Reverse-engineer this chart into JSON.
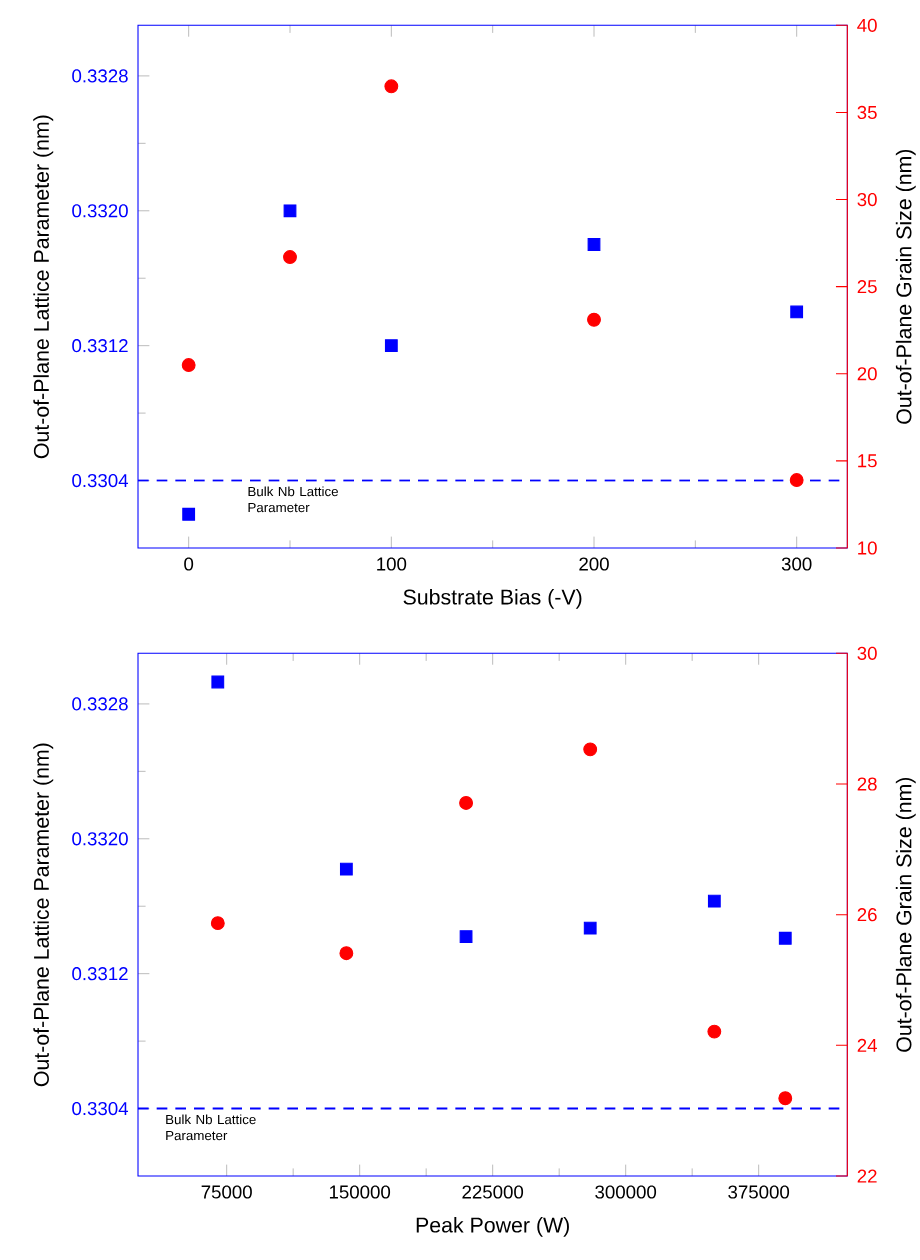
{
  "chart_data": [
    {
      "type": "scatter",
      "xlabel": "Substrate Bias (-V)",
      "ylabel": "Out-of-Plane Lattice Parameter (nm)",
      "y2label": "Out-of-Plane Grain Size (nm)",
      "xlim": [
        -25,
        325
      ],
      "xticks": [
        0,
        100,
        200,
        300
      ],
      "ylim": [
        0.33,
        0.3331
      ],
      "yticks": [
        {
          "value": 0.3304,
          "label": "0.3304"
        },
        {
          "value": 0.3312,
          "label": "0.3312"
        },
        {
          "value": 0.332,
          "label": "0.3320"
        },
        {
          "value": 0.3328,
          "label": "0.3328"
        }
      ],
      "y2lim": [
        10,
        40
      ],
      "y2ticks": [
        10,
        15,
        20,
        25,
        30,
        35,
        40
      ],
      "series": [
        {
          "color": "#0000ff",
          "marker": "square",
          "x": [
            0,
            50,
            100,
            200,
            300
          ],
          "values": [
            0.3302,
            0.332,
            0.3312,
            0.3318,
            0.3314
          ]
        },
        {
          "color": "#ff0000",
          "marker": "circle",
          "axis": "y2",
          "x": [
            0,
            50,
            100,
            200,
            300
          ],
          "values": [
            20.5,
            26.7,
            36.5,
            23.1,
            13.9
          ]
        }
      ],
      "ref_lines": [
        {
          "axis": "y",
          "value": 0.3304,
          "label": "Bulk Nb Lattice Parameter",
          "color": "#0000ff",
          "line_style": "dashed"
        }
      ]
    },
    {
      "type": "scatter",
      "xlabel": "Peak Power (W)",
      "ylabel": "Out-of-Plane Lattice Parameter (nm)",
      "y2label": "Out-of-Plane Grain Size (nm)",
      "xlim": [
        25000,
        425000
      ],
      "xticks": [
        75000,
        150000,
        225000,
        300000,
        375000
      ],
      "ylim": [
        0.33,
        0.3331
      ],
      "yticks": [
        {
          "value": 0.3304,
          "label": "0.3304"
        },
        {
          "value": 0.3312,
          "label": "0.3312"
        },
        {
          "value": 0.332,
          "label": "0.3320"
        },
        {
          "value": 0.3328,
          "label": "0.3328"
        }
      ],
      "y2lim": [
        22,
        30
      ],
      "y2ticks": [
        22,
        24,
        26,
        28,
        30
      ],
      "series": [
        {
          "color": "#0000ff",
          "marker": "square",
          "x": [
            70000,
            142500,
            210000,
            280000,
            350000,
            390000
          ],
          "values": [
            0.33293,
            0.33182,
            0.33142,
            0.33147,
            0.33163,
            0.33141
          ]
        },
        {
          "color": "#ff0000",
          "marker": "circle",
          "axis": "y2",
          "x": [
            70000,
            142500,
            210000,
            280000,
            350000,
            390000
          ],
          "values": [
            25.87,
            25.41,
            27.71,
            28.53,
            24.21,
            23.19
          ]
        }
      ],
      "ref_lines": [
        {
          "axis": "y",
          "value": 0.3304,
          "label": "Bulk Nb Lattice Parameter",
          "color": "#0000ff",
          "line_style": "dashed"
        }
      ]
    }
  ]
}
